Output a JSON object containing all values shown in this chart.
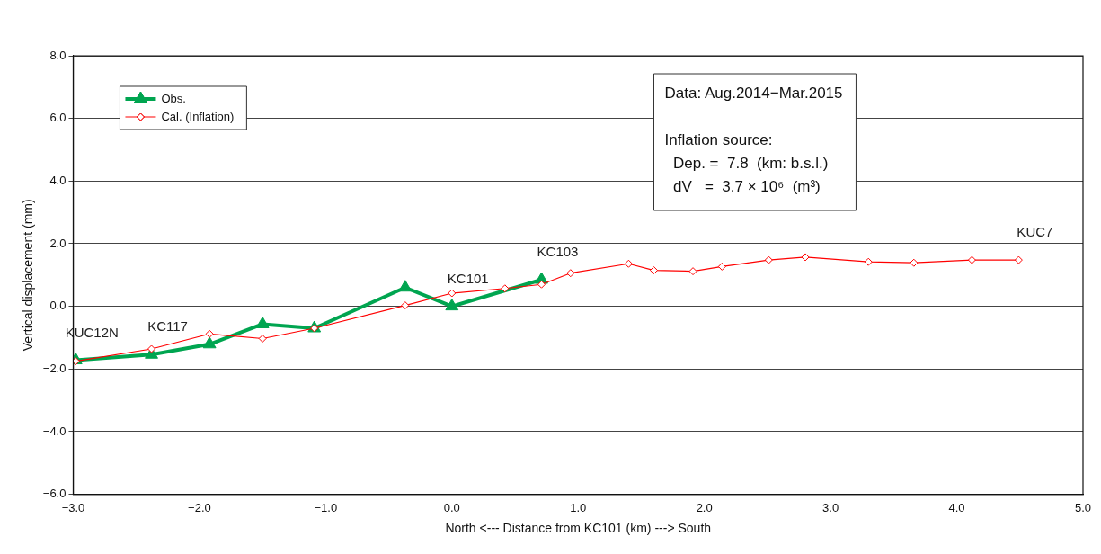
{
  "chart_data": {
    "type": "line",
    "xlabel": "North <--- Distance from KC101 (km) ---> South",
    "ylabel": "Vertical displacement (mm)",
    "xlim": [
      -3.0,
      5.0
    ],
    "xticks": [
      {
        "value": -3,
        "label": "−3.0"
      },
      {
        "value": -2,
        "label": "−2.0"
      },
      {
        "value": -1,
        "label": "−1.0"
      },
      {
        "value": 0,
        "label": "0.0"
      },
      {
        "value": 1,
        "label": "1.0"
      },
      {
        "value": 2,
        "label": "2.0"
      },
      {
        "value": 3,
        "label": "3.0"
      },
      {
        "value": 4,
        "label": "4.0"
      },
      {
        "value": 5,
        "label": "5.0"
      }
    ],
    "ylim": [
      -6.0,
      8.0
    ],
    "yticks": [
      {
        "value": -6,
        "label": "−6.0"
      },
      {
        "value": -4,
        "label": "−4.0"
      },
      {
        "value": -2,
        "label": "−2.0"
      },
      {
        "value": 0,
        "label": "0.0"
      },
      {
        "value": 2,
        "label": "2.0"
      },
      {
        "value": 4,
        "label": "4.0"
      },
      {
        "value": 6,
        "label": "6.0"
      },
      {
        "value": 8,
        "label": "8.0"
      }
    ],
    "grid": "y",
    "legend": "top left",
    "series": [
      {
        "name": "Obs.",
        "color": "#00a550",
        "marker": "triangle",
        "x": [
          -2.98,
          -2.38,
          -1.92,
          -1.5,
          -1.09,
          -0.37,
          0.0,
          0.71
        ],
        "values": [
          -1.72,
          -1.54,
          -1.21,
          -0.57,
          -0.7,
          0.6,
          0.0,
          0.85
        ]
      },
      {
        "name": "Cal. (Inflation)",
        "color": "#ff0000",
        "marker": "diamond",
        "x": [
          -2.98,
          -2.38,
          -1.92,
          -1.5,
          -1.09,
          -0.37,
          0.0,
          0.42,
          0.71,
          0.94,
          1.4,
          1.6,
          1.91,
          2.14,
          2.51,
          2.8,
          3.3,
          3.66,
          4.12,
          4.49
        ],
        "values": [
          -1.75,
          -1.36,
          -0.88,
          -1.03,
          -0.7,
          0.03,
          0.42,
          0.57,
          0.7,
          1.06,
          1.36,
          1.15,
          1.12,
          1.27,
          1.48,
          1.57,
          1.42,
          1.39,
          1.48,
          1.48
        ]
      }
    ],
    "annotations": [
      {
        "text": "KUC12N",
        "x": -2.98,
        "y": -1.72
      },
      {
        "text": "KC117",
        "x": -2.38,
        "y": -1.54
      },
      {
        "text": "KC101",
        "x": 0.0,
        "y": 0.0
      },
      {
        "text": "KC103",
        "x": 0.71,
        "y": 0.85
      },
      {
        "text": "KUC7",
        "x": 4.49,
        "y": 1.48
      },
      "Data: Aug.2014−Mar.2015",
      "Inflation source:",
      "  Dep. =  7.8  (km: b.s.l.)",
      "  dV   =  3.7 × 10⁶  (m³)"
    ]
  }
}
